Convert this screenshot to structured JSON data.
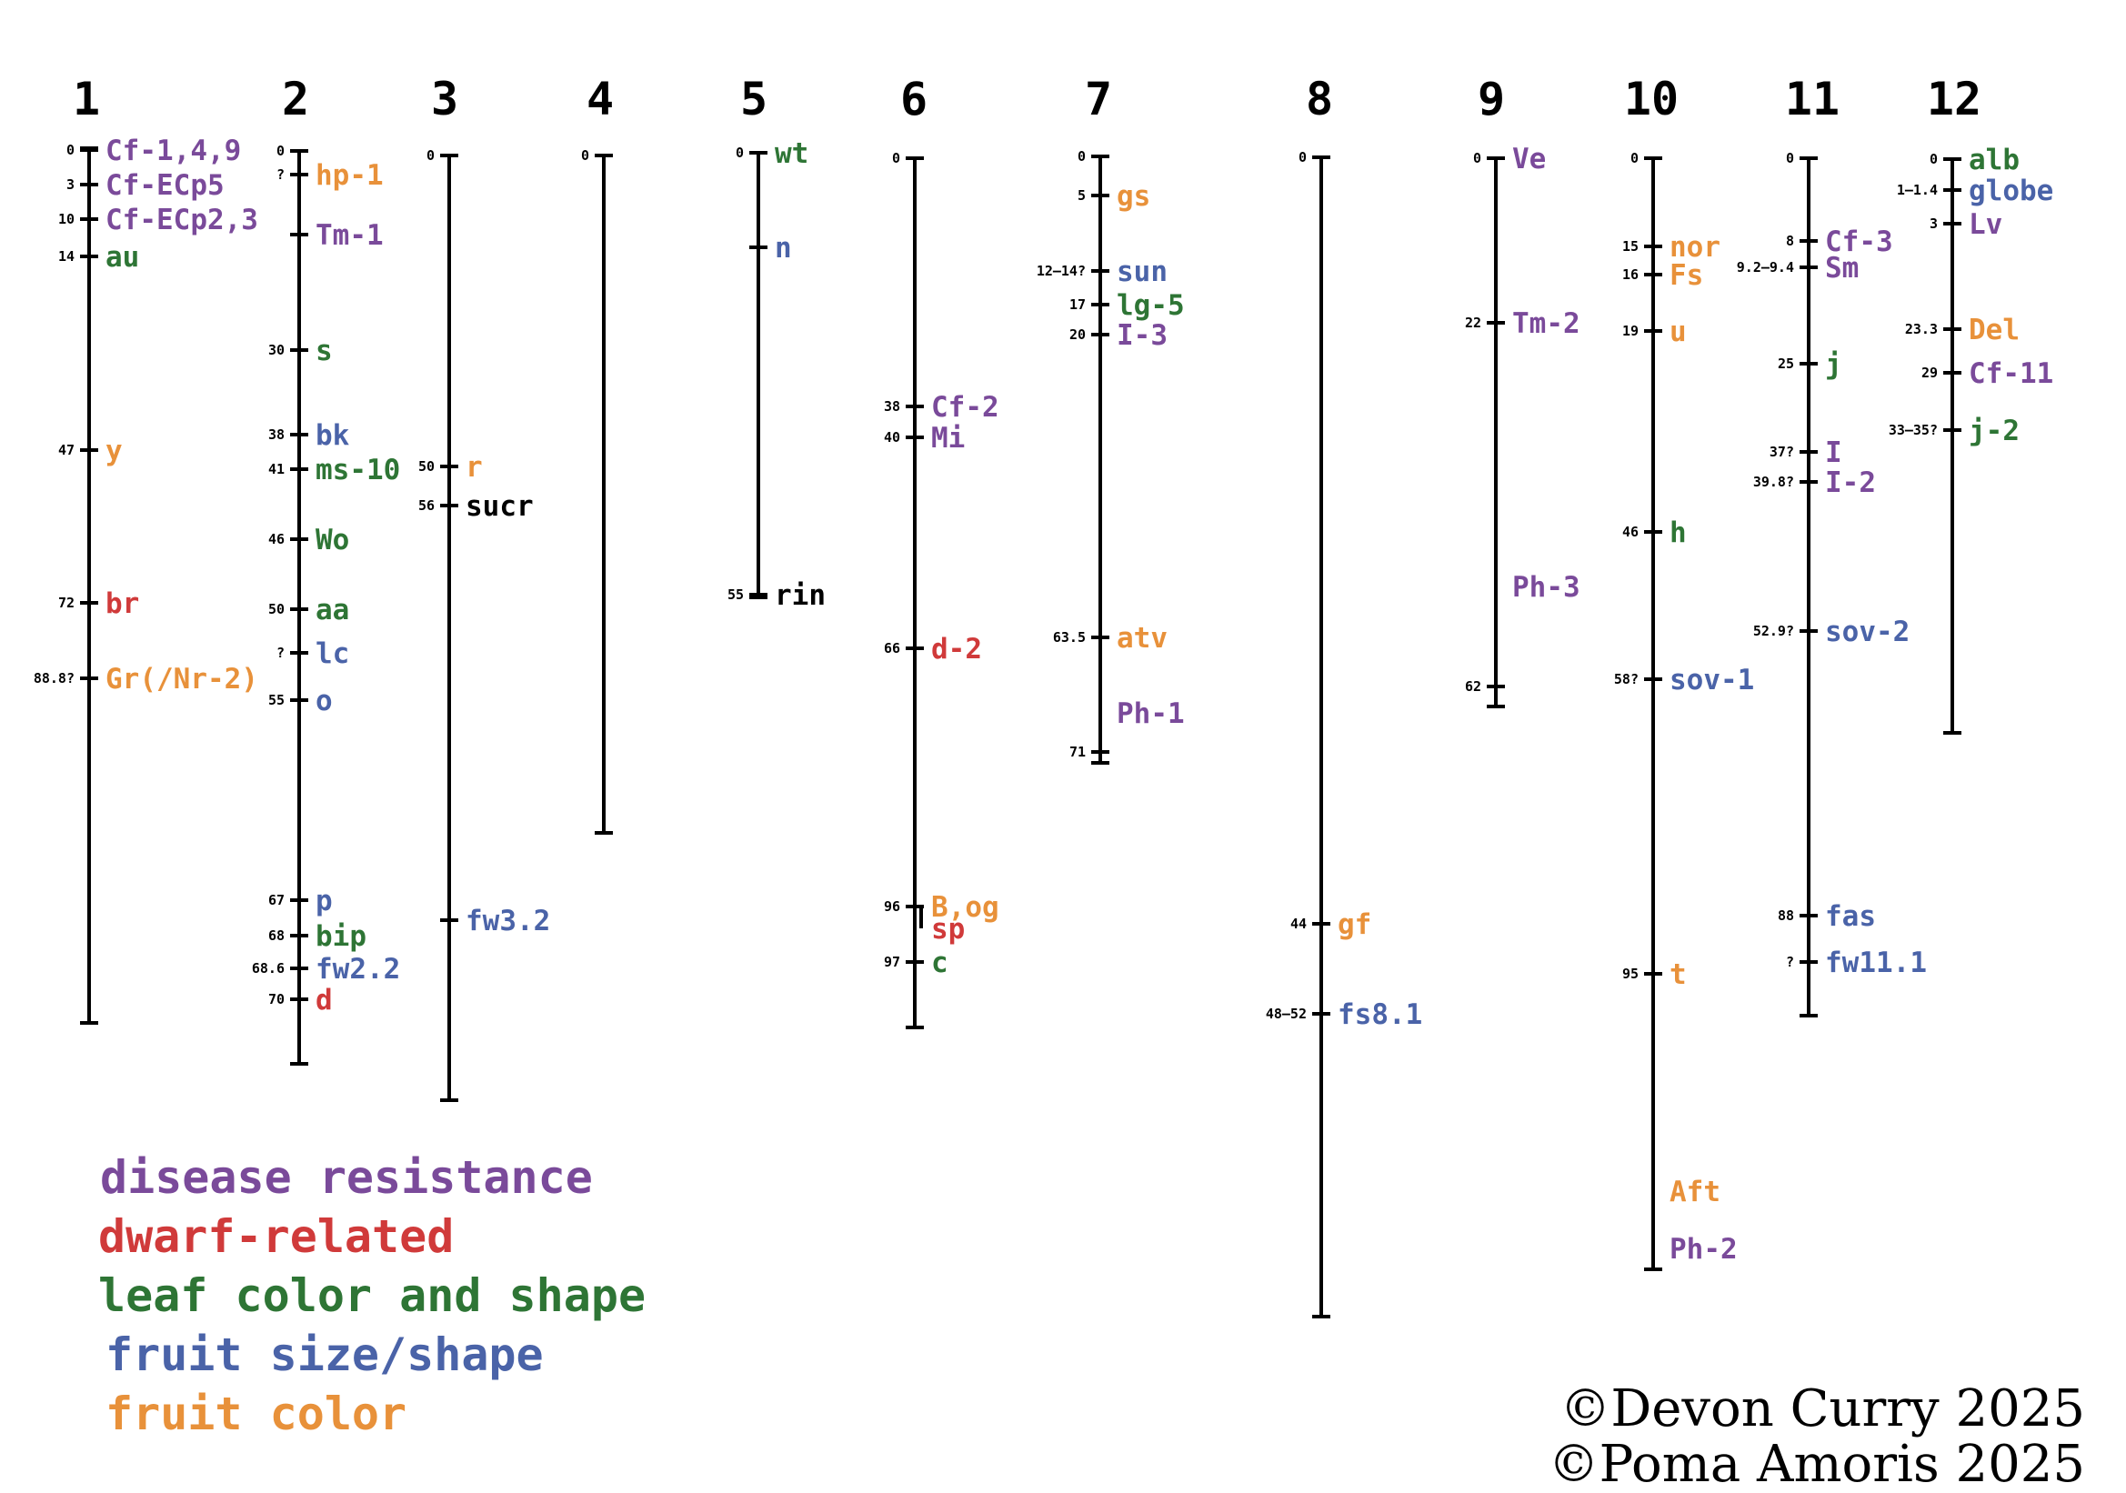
{
  "colors": {
    "disease": "#7a4a9a",
    "dwarf": "#d03a3a",
    "leaf": "#2e7535",
    "size": "#4a63a8",
    "color": "#e8913a",
    "plain": "#000000"
  },
  "legend": [
    {
      "label": "disease resistance",
      "cat": "disease"
    },
    {
      "label": "dwarf-related",
      "cat": "dwarf"
    },
    {
      "label": "leaf color and shape",
      "cat": "leaf"
    },
    {
      "label": "fruit size/shape",
      "cat": "size"
    },
    {
      "label": "fruit color",
      "cat": "color"
    }
  ],
  "credits": [
    "©Devon Curry 2025",
    "©Poma Amoris 2025"
  ],
  "chromosomes": [
    {
      "label": "1",
      "genes": [
        {
          "pos": "0",
          "name": "Cf-1,4,9",
          "cat": "disease"
        },
        {
          "pos": "3",
          "name": "Cf-ECp5",
          "cat": "disease"
        },
        {
          "pos": "10",
          "name": "Cf-ECp2,3",
          "cat": "disease"
        },
        {
          "pos": "14",
          "name": "au",
          "cat": "leaf"
        },
        {
          "pos": "47",
          "name": "y",
          "cat": "color"
        },
        {
          "pos": "72",
          "name": "br",
          "cat": "dwarf"
        },
        {
          "pos": "88.8?",
          "name": "Gr(/Nr-2)",
          "cat": "color"
        }
      ]
    },
    {
      "label": "2",
      "genes": [
        {
          "pos": "0",
          "name": "",
          "cat": "plain"
        },
        {
          "pos": "?",
          "name": "hp-1",
          "cat": "color"
        },
        {
          "pos": "",
          "name": "Tm-1",
          "cat": "disease"
        },
        {
          "pos": "30",
          "name": "s",
          "cat": "leaf"
        },
        {
          "pos": "38",
          "name": "bk",
          "cat": "size"
        },
        {
          "pos": "41",
          "name": "ms-10",
          "cat": "leaf"
        },
        {
          "pos": "46",
          "name": "Wo",
          "cat": "leaf"
        },
        {
          "pos": "50",
          "name": "aa",
          "cat": "leaf"
        },
        {
          "pos": "?",
          "name": "lc",
          "cat": "size"
        },
        {
          "pos": "55",
          "name": "o",
          "cat": "size"
        },
        {
          "pos": "67",
          "name": "p",
          "cat": "size"
        },
        {
          "pos": "68",
          "name": "bip",
          "cat": "leaf"
        },
        {
          "pos": "68.6",
          "name": "fw2.2",
          "cat": "size"
        },
        {
          "pos": "70",
          "name": "d",
          "cat": "dwarf"
        }
      ]
    },
    {
      "label": "3",
      "genes": [
        {
          "pos": "0",
          "name": "",
          "cat": "plain"
        },
        {
          "pos": "50",
          "name": "r",
          "cat": "color"
        },
        {
          "pos": "56",
          "name": "sucr",
          "cat": "plain"
        },
        {
          "pos": "",
          "name": "fw3.2",
          "cat": "size"
        }
      ]
    },
    {
      "label": "4",
      "genes": [
        {
          "pos": "0",
          "name": "",
          "cat": "plain"
        }
      ]
    },
    {
      "label": "5",
      "genes": [
        {
          "pos": "0",
          "name": "wt",
          "cat": "leaf"
        },
        {
          "pos": "",
          "name": "n",
          "cat": "size"
        },
        {
          "pos": "55",
          "name": "rin",
          "cat": "plain"
        }
      ]
    },
    {
      "label": "6",
      "genes": [
        {
          "pos": "0",
          "name": "",
          "cat": "plain"
        },
        {
          "pos": "38",
          "name": "Cf-2",
          "cat": "disease"
        },
        {
          "pos": "40",
          "name": "Mi",
          "cat": "disease"
        },
        {
          "pos": "66",
          "name": "d-2",
          "cat": "dwarf"
        },
        {
          "pos": "96",
          "name": "B,og",
          "cat": "color"
        },
        {
          "pos": "",
          "name": "sp",
          "cat": "dwarf"
        },
        {
          "pos": "97",
          "name": "c",
          "cat": "leaf"
        }
      ]
    },
    {
      "label": "7",
      "genes": [
        {
          "pos": "0",
          "name": "",
          "cat": "plain"
        },
        {
          "pos": "5",
          "name": "gs",
          "cat": "color"
        },
        {
          "pos": "12–14?",
          "name": "sun",
          "cat": "size"
        },
        {
          "pos": "17",
          "name": "lg-5",
          "cat": "leaf"
        },
        {
          "pos": "20",
          "name": "I-3",
          "cat": "disease"
        },
        {
          "pos": "63.5",
          "name": "atv",
          "cat": "color"
        },
        {
          "pos": "",
          "name": "Ph-1",
          "cat": "disease"
        },
        {
          "pos": "71",
          "name": "",
          "cat": "plain"
        }
      ]
    },
    {
      "label": "8",
      "genes": [
        {
          "pos": "0",
          "name": "",
          "cat": "plain"
        },
        {
          "pos": "44",
          "name": "gf",
          "cat": "color"
        },
        {
          "pos": "48–52",
          "name": "fs8.1",
          "cat": "size"
        }
      ]
    },
    {
      "label": "9",
      "genes": [
        {
          "pos": "0",
          "name": "Ve",
          "cat": "disease"
        },
        {
          "pos": "22",
          "name": "Tm-2",
          "cat": "disease"
        },
        {
          "pos": "",
          "name": "Ph-3",
          "cat": "disease"
        },
        {
          "pos": "62",
          "name": "",
          "cat": "plain"
        }
      ]
    },
    {
      "label": "10",
      "genes": [
        {
          "pos": "0",
          "name": "",
          "cat": "plain"
        },
        {
          "pos": "15",
          "name": "nor",
          "cat": "color"
        },
        {
          "pos": "16",
          "name": "Fs",
          "cat": "color"
        },
        {
          "pos": "19",
          "name": "u",
          "cat": "color"
        },
        {
          "pos": "46",
          "name": "h",
          "cat": "leaf"
        },
        {
          "pos": "58?",
          "name": "sov-1",
          "cat": "size"
        },
        {
          "pos": "95",
          "name": "t",
          "cat": "color"
        },
        {
          "pos": "",
          "name": "Aft",
          "cat": "color"
        },
        {
          "pos": "",
          "name": "Ph-2",
          "cat": "disease"
        }
      ]
    },
    {
      "label": "11",
      "genes": [
        {
          "pos": "0",
          "name": "",
          "cat": "plain"
        },
        {
          "pos": "8",
          "name": "Cf-3",
          "cat": "disease"
        },
        {
          "pos": "9.2–9.4",
          "name": "Sm",
          "cat": "disease"
        },
        {
          "pos": "25",
          "name": "j",
          "cat": "leaf"
        },
        {
          "pos": "37?",
          "name": "I",
          "cat": "disease"
        },
        {
          "pos": "39.8?",
          "name": "I-2",
          "cat": "disease"
        },
        {
          "pos": "52.9?",
          "name": "sov-2",
          "cat": "size"
        },
        {
          "pos": "88",
          "name": "fas",
          "cat": "size"
        },
        {
          "pos": "?",
          "name": "fw11.1",
          "cat": "size"
        }
      ]
    },
    {
      "label": "12",
      "genes": [
        {
          "pos": "0",
          "name": "alb",
          "cat": "leaf"
        },
        {
          "pos": "1–1.4",
          "name": "globe",
          "cat": "size"
        },
        {
          "pos": "3",
          "name": "Lv",
          "cat": "disease"
        },
        {
          "pos": "23.3",
          "name": "Del",
          "cat": "color"
        },
        {
          "pos": "29",
          "name": "Cf-11",
          "cat": "disease"
        },
        {
          "pos": "33–35?",
          "name": "j-2",
          "cat": "leaf"
        }
      ]
    }
  ]
}
